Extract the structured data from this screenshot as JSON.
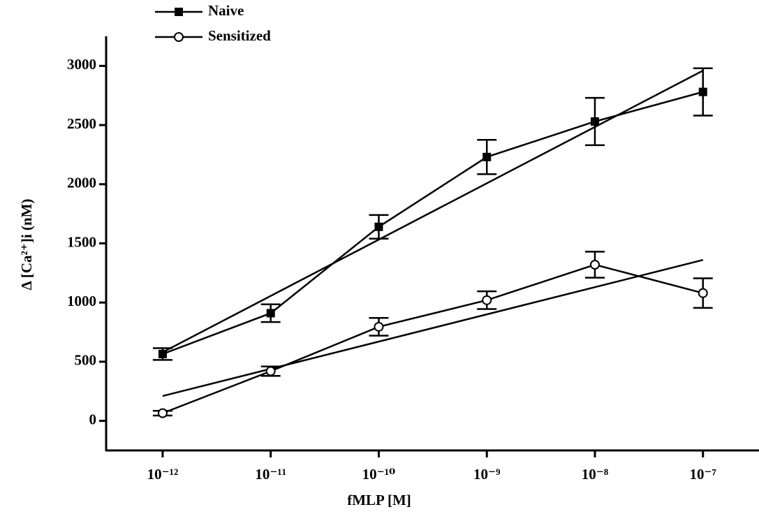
{
  "chart_data": {
    "type": "line",
    "x_label": "fMLP [M]",
    "y_label": "Δ [Ca²⁺]i (nM)",
    "x": [
      1e-12,
      1e-11,
      1e-10,
      1e-09,
      1e-08,
      1e-07
    ],
    "log_x": true,
    "xlim": [
      3e-13,
      3.3e-07
    ],
    "xticks": [
      {
        "value": 1e-12,
        "label": "10⁻¹²"
      },
      {
        "value": 1e-11,
        "label": "10⁻¹¹"
      },
      {
        "value": 1e-10,
        "label": "10⁻¹⁰"
      },
      {
        "value": 1e-09,
        "label": "10⁻⁹"
      },
      {
        "value": 1e-08,
        "label": "10⁻⁸"
      },
      {
        "value": 1e-07,
        "label": "10⁻⁷"
      }
    ],
    "ylim": [
      -250,
      3250
    ],
    "yticks": [
      0,
      500,
      1000,
      1500,
      2000,
      2500,
      3000
    ],
    "legend": "top-left",
    "series": [
      {
        "name": "Naive",
        "color": "#000000",
        "marker": "filled-square",
        "values": [
          565,
          910,
          1640,
          2230,
          2530,
          2780
        ],
        "errors": [
          50,
          75,
          100,
          145,
          200,
          200
        ],
        "fit_values": [
          580,
          2960
        ]
      },
      {
        "name": "Sensitized",
        "color": "#000000",
        "marker": "open-circle",
        "values": [
          65,
          420,
          795,
          1020,
          1320,
          1080
        ],
        "errors": [
          20,
          40,
          75,
          75,
          110,
          125
        ],
        "fit_values": [
          210,
          1360
        ]
      }
    ]
  }
}
